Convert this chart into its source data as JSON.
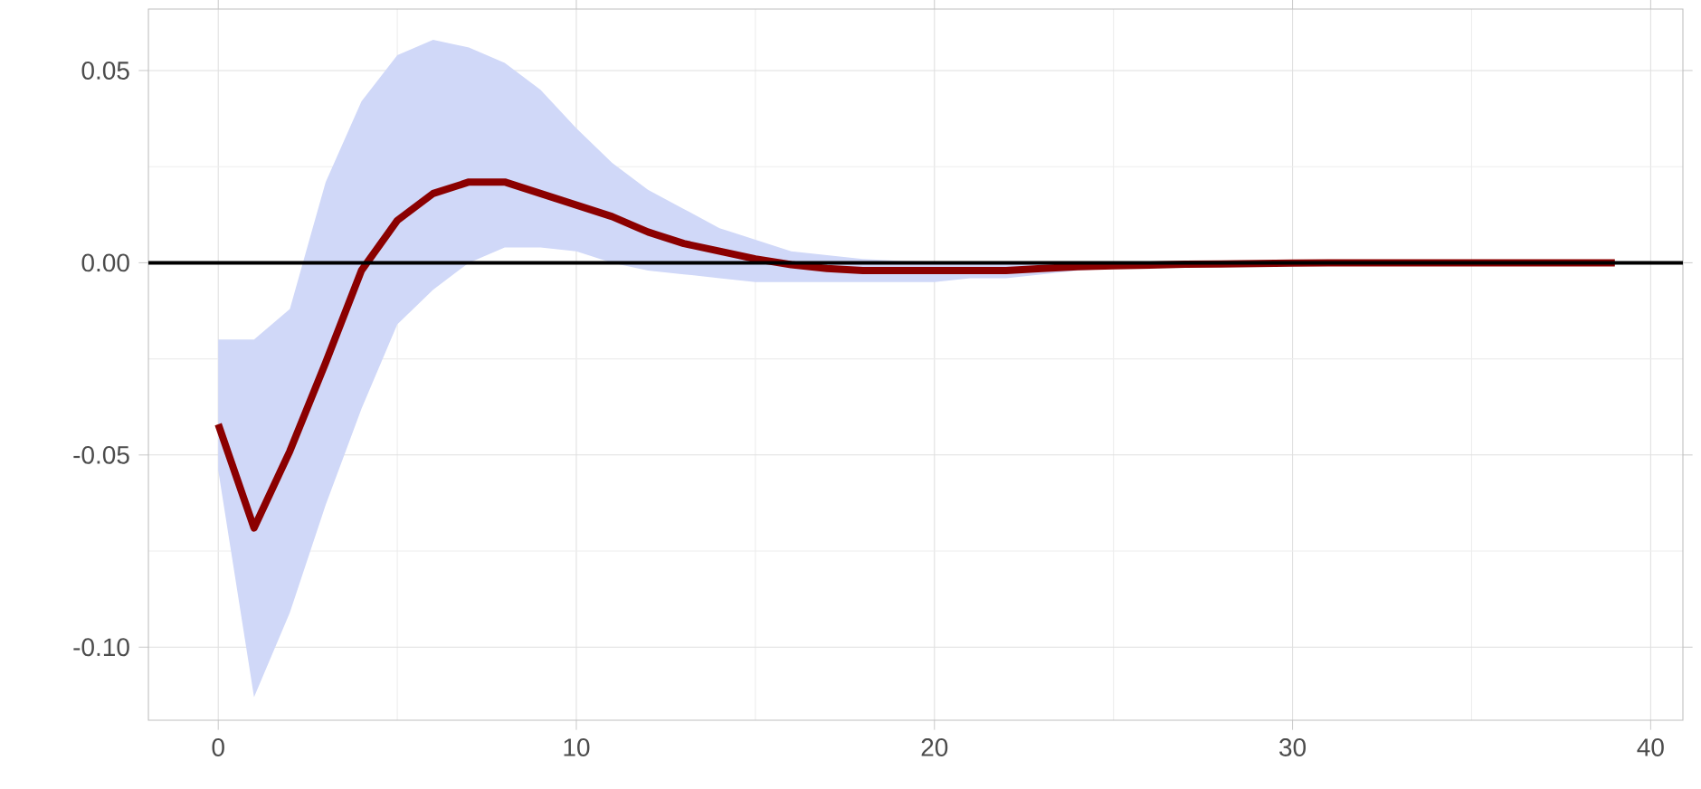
{
  "chart_data": {
    "type": "line",
    "x": [
      0,
      1,
      2,
      3,
      4,
      5,
      6,
      7,
      8,
      9,
      10,
      11,
      12,
      13,
      14,
      15,
      16,
      17,
      18,
      19,
      20,
      21,
      22,
      23,
      24,
      25,
      26,
      27,
      28,
      29,
      30,
      31,
      32,
      33,
      34,
      35,
      36,
      37,
      38,
      39
    ],
    "series": [
      {
        "color": "#8b0000",
        "values": [
          -0.042,
          -0.069,
          -0.049,
          -0.026,
          -0.002,
          0.011,
          0.018,
          0.021,
          0.021,
          0.018,
          0.015,
          0.012,
          0.008,
          0.005,
          0.003,
          0.001,
          -0.0005,
          -0.0015,
          -0.002,
          -0.002,
          -0.002,
          -0.002,
          -0.002,
          -0.0015,
          -0.001,
          -0.0008,
          -0.0006,
          -0.0004,
          -0.0003,
          -0.0002,
          -0.0001,
          0,
          0,
          0,
          0,
          0,
          0,
          0,
          0,
          0
        ],
        "upper": [
          -0.02,
          -0.02,
          -0.012,
          0.021,
          0.042,
          0.054,
          0.058,
          0.056,
          0.052,
          0.045,
          0.035,
          0.026,
          0.019,
          0.014,
          0.009,
          0.006,
          0.003,
          0.002,
          0.001,
          0.0005,
          0.0003,
          0.0003,
          0.0003,
          0.0003,
          0.0003,
          0.0003,
          0.0003,
          0.0003,
          0.0003,
          0.0003,
          0.0003,
          0.0003,
          0.0003,
          0.0003,
          0.0003,
          0.0003,
          0.0003,
          0.0003,
          0.0003,
          0.0003
        ],
        "lower": [
          -0.054,
          -0.113,
          -0.091,
          -0.063,
          -0.038,
          -0.016,
          -0.007,
          0,
          0.004,
          0.004,
          0.003,
          0,
          -0.002,
          -0.003,
          -0.004,
          -0.005,
          -0.005,
          -0.005,
          -0.005,
          -0.005,
          -0.005,
          -0.004,
          -0.004,
          -0.003,
          -0.002,
          -0.0015,
          -0.001,
          -0.001,
          -0.0008,
          -0.0006,
          -0.0005,
          -0.0004,
          -0.0003,
          -0.0003,
          -0.0003,
          -0.0003,
          -0.0003,
          -0.0003,
          -0.0003,
          -0.0003
        ]
      }
    ],
    "xlim": [
      -1.95,
      40.9
    ],
    "ylim": [
      -0.119,
      0.066
    ],
    "xticks": [
      0,
      10,
      20,
      30,
      40
    ],
    "yticks": [
      {
        "value": 0.05,
        "label": "0.05"
      },
      {
        "value": 0.0,
        "label": "0.00"
      },
      {
        "value": -0.05,
        "label": "-0.05"
      },
      {
        "value": -0.1,
        "label": "-0.10"
      }
    ],
    "grid": true,
    "ref_lines": [
      {
        "axis": "y",
        "value": 0,
        "color": "#000000"
      }
    ]
  }
}
